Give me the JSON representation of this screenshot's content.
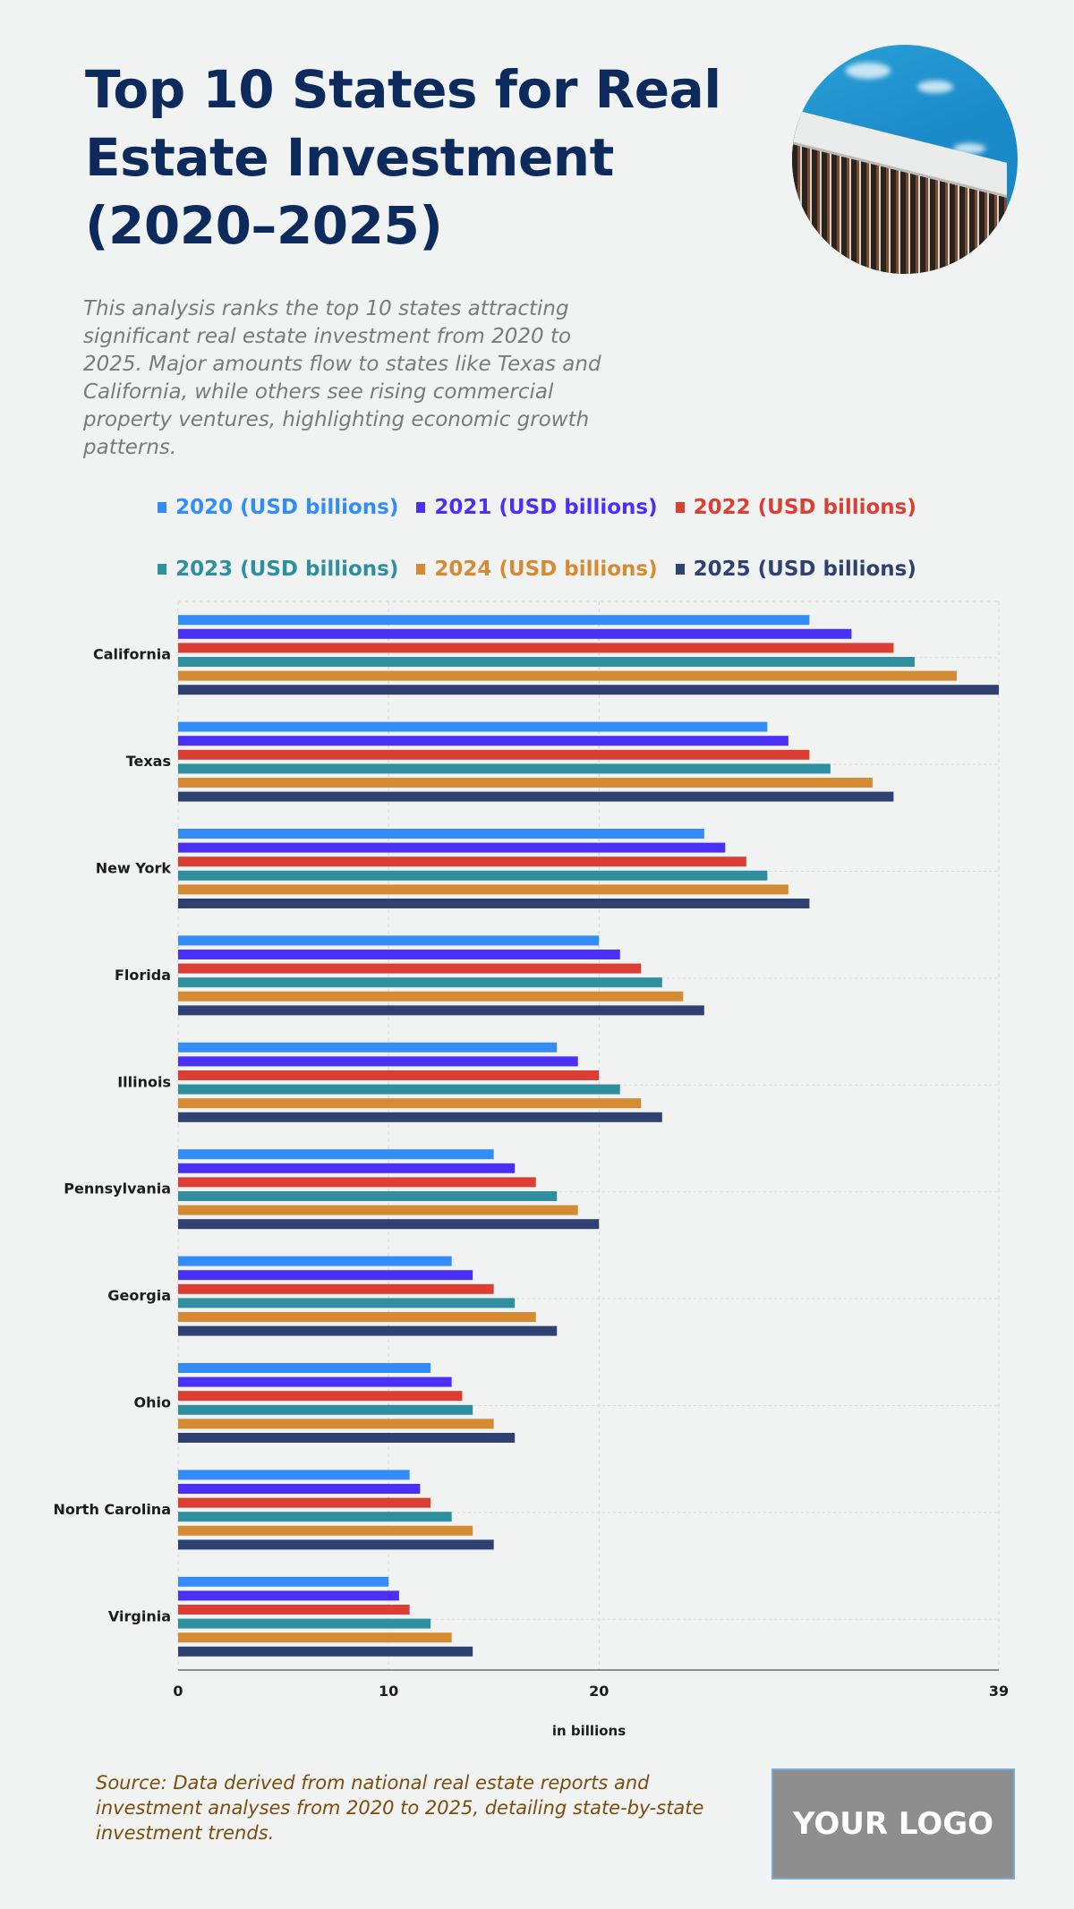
{
  "header": {
    "title": "Top 10 States for Real Estate Investment (2020–2025)",
    "description": "This analysis ranks the top 10 states attracting significant real estate investment from 2020 to 2025. Major amounts flow to states like Texas and California, while others see rising commercial property ventures, highlighting economic growth patterns.",
    "image_alt": "building-photo"
  },
  "chart_data": {
    "type": "bar",
    "orientation": "horizontal",
    "title": "Top 10 States for Real Estate Investment (2020–2025)",
    "xlabel": "in billions",
    "ylabel": "",
    "xlim": [
      0,
      39
    ],
    "x_ticks": [
      0,
      10,
      20,
      39
    ],
    "grid": true,
    "legend_position": "top",
    "categories": [
      "California",
      "Texas",
      "New York",
      "Florida",
      "Illinois",
      "Pennsylvania",
      "Georgia",
      "Ohio",
      "North Carolina",
      "Virginia"
    ],
    "series": [
      {
        "name": "2020 (USD billions)",
        "color": "#338cf7",
        "values": [
          30,
          28,
          25,
          20,
          18,
          15,
          13,
          12,
          11,
          10
        ]
      },
      {
        "name": "2021 (USD billions)",
        "color": "#4a30f7",
        "values": [
          32,
          29,
          26,
          21,
          19,
          16,
          14,
          13,
          11.5,
          10.5
        ]
      },
      {
        "name": "2022 (USD billions)",
        "color": "#dc3e33",
        "values": [
          34,
          30,
          27,
          22,
          20,
          17,
          15,
          13.5,
          12,
          11
        ]
      },
      {
        "name": "2023 (USD billions)",
        "color": "#2f8f9f",
        "values": [
          35,
          31,
          28,
          23,
          21,
          18,
          16,
          14,
          13,
          12
        ]
      },
      {
        "name": "2024 (USD billions)",
        "color": "#d48b34",
        "values": [
          37,
          33,
          29,
          24,
          22,
          19,
          17,
          15,
          14,
          13
        ]
      },
      {
        "name": "2025 (USD billions)",
        "color": "#2f4170",
        "values": [
          39,
          34,
          30,
          25,
          23,
          20,
          18,
          16,
          15,
          14
        ]
      }
    ]
  },
  "footer": {
    "source": "Source: Data derived from national real estate reports and investment analyses from 2020 to 2025, detailing state-by-state investment trends.",
    "logo": "YOUR LOGO"
  }
}
